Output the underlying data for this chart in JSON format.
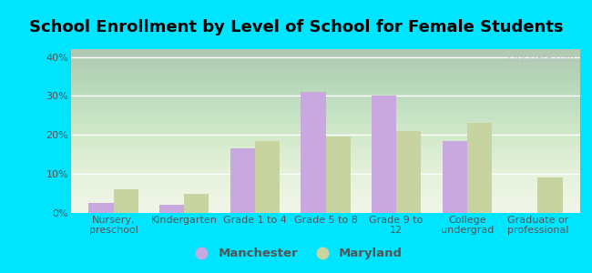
{
  "title": "School Enrollment by Level of School for Female Students",
  "categories": [
    "Nursery,\npreschool",
    "Kindergarten",
    "Grade 1 to 4",
    "Grade 5 to 8",
    "Grade 9 to\n12",
    "College\nundergrad",
    "Graduate or\nprofessional"
  ],
  "manchester_values": [
    2.5,
    2.2,
    16.5,
    31.0,
    30.0,
    18.5,
    0
  ],
  "maryland_values": [
    6.0,
    5.0,
    18.5,
    19.5,
    21.0,
    23.0,
    9.0
  ],
  "manchester_color": "#c9a8e0",
  "maryland_color": "#c8d4a0",
  "background_outer": "#00e5ff",
  "background_inner_top": "#e8f0d8",
  "background_inner_bottom": "#f5faf0",
  "ylim": [
    0,
    42
  ],
  "yticks": [
    0,
    10,
    20,
    30,
    40
  ],
  "ytick_labels": [
    "0%",
    "10%",
    "20%",
    "30%",
    "40%"
  ],
  "bar_width": 0.35,
  "legend_manchester": "Manchester",
  "legend_maryland": "Maryland",
  "title_fontsize": 13,
  "tick_fontsize": 8,
  "legend_fontsize": 9.5,
  "watermark": "City-Data.com"
}
